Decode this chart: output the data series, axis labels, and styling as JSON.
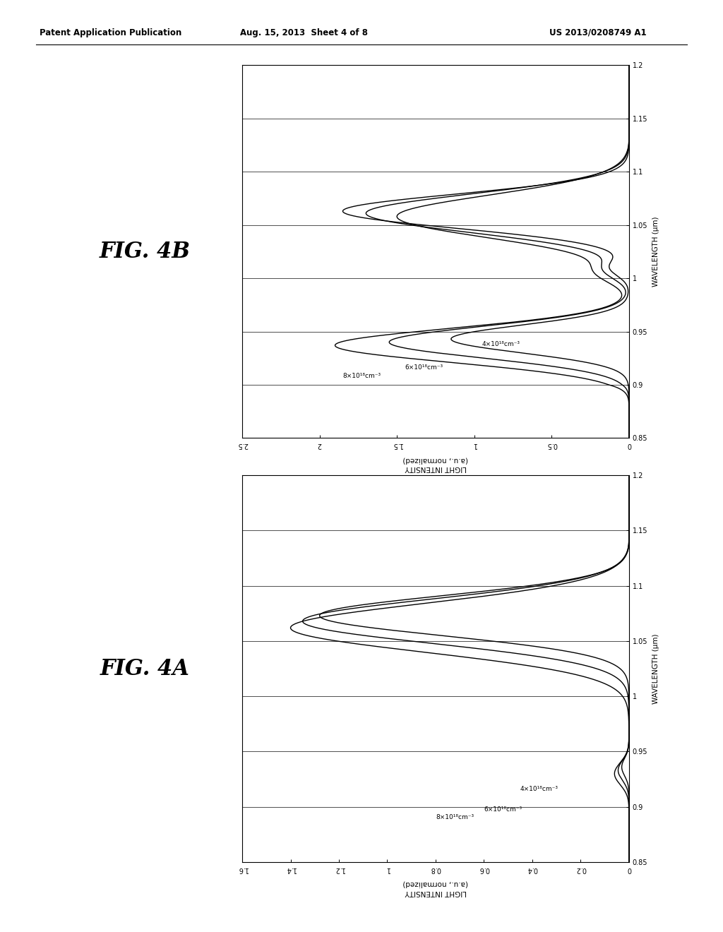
{
  "header_left": "Patent Application Publication",
  "header_mid": "Aug. 15, 2013  Sheet 4 of 8",
  "header_right": "US 2013/0208749 A1",
  "fig4A_title": "FIG. 4A",
  "fig4B_title": "FIG. 4B",
  "wavelength_label": "WAVELENGTH (μm)",
  "intensity_label_line1": "LIGHT INTENSITY",
  "intensity_label_line2": "(a.u., normalized)",
  "xlim_wave": [
    0.85,
    1.2
  ],
  "ylim_A": [
    0.0,
    1.6
  ],
  "ylim_B": [
    0.0,
    2.5
  ],
  "xticks_wave": [
    0.85,
    0.9,
    0.95,
    1.0,
    1.05,
    1.1,
    1.15,
    1.2
  ],
  "yticks_A": [
    0.0,
    0.2,
    0.4,
    0.6,
    0.8,
    1.0,
    1.2,
    1.4,
    1.6
  ],
  "yticks_B": [
    0.0,
    0.5,
    1.0,
    1.5,
    2.0,
    2.5
  ],
  "labels": [
    "8×10¹⁸cm⁻³",
    "6×10¹⁸cm⁻³",
    "4×10¹⁸cm⁻³"
  ],
  "background_color": "#ffffff",
  "line_color": "#000000"
}
